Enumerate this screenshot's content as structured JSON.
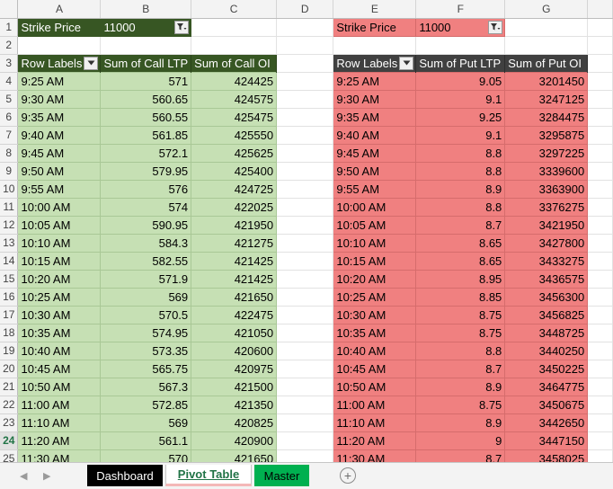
{
  "columns": [
    "A",
    "B",
    "C",
    "D",
    "E",
    "F",
    "G"
  ],
  "active_row": "24",
  "row1": {
    "num": "1",
    "left_label": "Strike Price",
    "left_value": "11000",
    "right_label": "Strike Price",
    "right_value": "11000"
  },
  "row2": {
    "num": "2"
  },
  "row3": {
    "num": "3",
    "call_headers": [
      "Row Labels",
      "Sum of Call LTP",
      "Sum of Call OI"
    ],
    "put_headers": [
      "Row Labels",
      "Sum of Put LTP",
      "Sum of Put OI"
    ]
  },
  "rows": [
    {
      "num": "4",
      "time_a": "9:25 AM",
      "call_ltp": "571",
      "call_oi": "424425",
      "time_e": "9:25 AM",
      "put_ltp": "9.05",
      "put_oi": "3201450"
    },
    {
      "num": "5",
      "time_a": "9:30 AM",
      "call_ltp": "560.65",
      "call_oi": "424575",
      "time_e": "9:30 AM",
      "put_ltp": "9.1",
      "put_oi": "3247125"
    },
    {
      "num": "6",
      "time_a": "9:35 AM",
      "call_ltp": "560.55",
      "call_oi": "425475",
      "time_e": "9:35 AM",
      "put_ltp": "9.25",
      "put_oi": "3284475"
    },
    {
      "num": "7",
      "time_a": "9:40 AM",
      "call_ltp": "561.85",
      "call_oi": "425550",
      "time_e": "9:40 AM",
      "put_ltp": "9.1",
      "put_oi": "3295875"
    },
    {
      "num": "8",
      "time_a": "9:45 AM",
      "call_ltp": "572.1",
      "call_oi": "425625",
      "time_e": "9:45 AM",
      "put_ltp": "8.8",
      "put_oi": "3297225"
    },
    {
      "num": "9",
      "time_a": "9:50 AM",
      "call_ltp": "579.95",
      "call_oi": "425400",
      "time_e": "9:50 AM",
      "put_ltp": "8.8",
      "put_oi": "3339600"
    },
    {
      "num": "10",
      "time_a": "9:55 AM",
      "call_ltp": "576",
      "call_oi": "424725",
      "time_e": "9:55 AM",
      "put_ltp": "8.9",
      "put_oi": "3363900"
    },
    {
      "num": "11",
      "time_a": "10:00 AM",
      "call_ltp": "574",
      "call_oi": "422025",
      "time_e": "10:00 AM",
      "put_ltp": "8.8",
      "put_oi": "3376275"
    },
    {
      "num": "12",
      "time_a": "10:05 AM",
      "call_ltp": "590.95",
      "call_oi": "421950",
      "time_e": "10:05 AM",
      "put_ltp": "8.7",
      "put_oi": "3421950"
    },
    {
      "num": "13",
      "time_a": "10:10 AM",
      "call_ltp": "584.3",
      "call_oi": "421275",
      "time_e": "10:10 AM",
      "put_ltp": "8.65",
      "put_oi": "3427800"
    },
    {
      "num": "14",
      "time_a": "10:15 AM",
      "call_ltp": "582.55",
      "call_oi": "421425",
      "time_e": "10:15 AM",
      "put_ltp": "8.65",
      "put_oi": "3433275"
    },
    {
      "num": "15",
      "time_a": "10:20 AM",
      "call_ltp": "571.9",
      "call_oi": "421425",
      "time_e": "10:20 AM",
      "put_ltp": "8.95",
      "put_oi": "3436575"
    },
    {
      "num": "16",
      "time_a": "10:25 AM",
      "call_ltp": "569",
      "call_oi": "421650",
      "time_e": "10:25 AM",
      "put_ltp": "8.85",
      "put_oi": "3456300"
    },
    {
      "num": "17",
      "time_a": "10:30 AM",
      "call_ltp": "570.5",
      "call_oi": "422475",
      "time_e": "10:30 AM",
      "put_ltp": "8.75",
      "put_oi": "3456825"
    },
    {
      "num": "18",
      "time_a": "10:35 AM",
      "call_ltp": "574.95",
      "call_oi": "421050",
      "time_e": "10:35 AM",
      "put_ltp": "8.75",
      "put_oi": "3448725"
    },
    {
      "num": "19",
      "time_a": "10:40 AM",
      "call_ltp": "573.35",
      "call_oi": "420600",
      "time_e": "10:40 AM",
      "put_ltp": "8.8",
      "put_oi": "3440250"
    },
    {
      "num": "20",
      "time_a": "10:45 AM",
      "call_ltp": "565.75",
      "call_oi": "420975",
      "time_e": "10:45 AM",
      "put_ltp": "8.7",
      "put_oi": "3450225"
    },
    {
      "num": "21",
      "time_a": "10:50 AM",
      "call_ltp": "567.3",
      "call_oi": "421500",
      "time_e": "10:50 AM",
      "put_ltp": "8.9",
      "put_oi": "3464775"
    },
    {
      "num": "22",
      "time_a": "11:00 AM",
      "call_ltp": "572.85",
      "call_oi": "421350",
      "time_e": "11:00 AM",
      "put_ltp": "8.75",
      "put_oi": "3450675"
    },
    {
      "num": "23",
      "time_a": "11:10 AM",
      "call_ltp": "569",
      "call_oi": "420825",
      "time_e": "11:10 AM",
      "put_ltp": "8.9",
      "put_oi": "3442650"
    },
    {
      "num": "24",
      "time_a": "11:20 AM",
      "call_ltp": "561.1",
      "call_oi": "420900",
      "time_e": "11:20 AM",
      "put_ltp": "9",
      "put_oi": "3447150"
    },
    {
      "num": "25",
      "time_a": "11:30 AM",
      "call_ltp": "570",
      "call_oi": "421650",
      "time_e": "11:30 AM",
      "put_ltp": "8.7",
      "put_oi": "3458025"
    }
  ],
  "tabs": {
    "nav_prev": "◀",
    "nav_next": "▶",
    "dashboard": "Dashboard",
    "pivot": "Pivot Table",
    "master": "Master",
    "add": "+"
  },
  "icons": {
    "filter": "filter-funnel-icon",
    "dropdown": "dropdown-arrow-icon"
  },
  "colors": {
    "call_header": "#375623",
    "call_cell": "#c6e0b4",
    "put_header": "#404040",
    "put_cell": "#f08080",
    "tab_master": "#00b050",
    "tab_dashboard": "#000000"
  }
}
